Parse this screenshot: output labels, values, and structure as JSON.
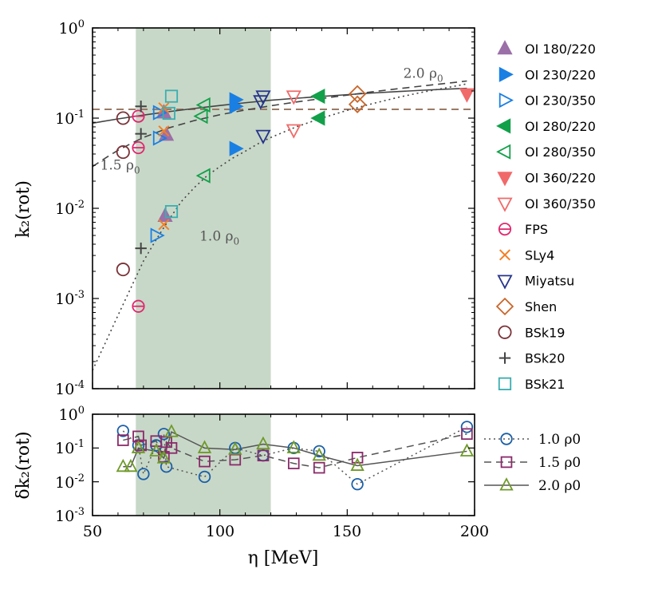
{
  "chart_data": [
    {
      "type": "scatter",
      "panel": "top",
      "xlabel": "η [MeV]",
      "ylabel": "k₂(rot)",
      "yscale": "log",
      "xlim": [
        50,
        200
      ],
      "ylim": [
        0.0001,
        1
      ],
      "yticklabels": [
        "10^0",
        "10^-1",
        "10^-2",
        "10^-3",
        "10^-4"
      ],
      "shaded_region": {
        "x_range": [
          67,
          120
        ],
        "color": "#c8d8c8"
      },
      "reference_line": {
        "y": 0.125,
        "style": "dashed",
        "color": "#9b7b66"
      },
      "fit_curves": [
        {
          "name": "2.0 ρ0",
          "style": "solid",
          "x": [
            50,
            60,
            70,
            80,
            90,
            100,
            110,
            120,
            130,
            140,
            150,
            160,
            170,
            180,
            190,
            197
          ],
          "y": [
            0.088,
            0.098,
            0.108,
            0.118,
            0.128,
            0.138,
            0.148,
            0.158,
            0.166,
            0.174,
            0.182,
            0.19,
            0.197,
            0.204,
            0.21,
            0.214
          ]
        },
        {
          "name": "1.5 ρ0",
          "style": "dashed",
          "x": [
            50,
            55,
            60,
            65,
            70,
            80,
            90,
            100,
            110,
            120,
            130,
            140,
            150,
            160,
            170,
            180,
            190,
            197
          ],
          "y": [
            0.029,
            0.036,
            0.044,
            0.052,
            0.061,
            0.078,
            0.094,
            0.109,
            0.123,
            0.137,
            0.151,
            0.165,
            0.18,
            0.196,
            0.212,
            0.228,
            0.245,
            0.258
          ]
        },
        {
          "name": "1.0 ρ0",
          "style": "dotted",
          "x": [
            50,
            55,
            60,
            65,
            70,
            75,
            80,
            85,
            90,
            95,
            100,
            105,
            110,
            115,
            120,
            130,
            140,
            150,
            160,
            170,
            180,
            190,
            197
          ],
          "y": [
            0.00016,
            0.00032,
            0.00065,
            0.0013,
            0.0026,
            0.0045,
            0.0075,
            0.012,
            0.017,
            0.023,
            0.029,
            0.036,
            0.043,
            0.052,
            0.061,
            0.08,
            0.1,
            0.122,
            0.145,
            0.17,
            0.195,
            0.22,
            0.24
          ]
        }
      ],
      "series": [
        {
          "name": "OI 180/220",
          "marker": "tri-up",
          "filled": true,
          "color": "#9b6fa8",
          "points": [
            [
              78,
              0.115
            ],
            [
              79,
              0.065
            ],
            [
              78.5,
              0.0082
            ]
          ]
        },
        {
          "name": "OI 230/220",
          "marker": "tri-right",
          "filled": true,
          "color": "#1a7fe3",
          "points": [
            [
              106,
              0.16
            ],
            [
              106,
              0.135
            ],
            [
              106,
              0.046
            ]
          ]
        },
        {
          "name": "OI 230/350",
          "marker": "tri-right",
          "filled": false,
          "color": "#1a7fe3",
          "points": [
            [
              76,
              0.115
            ],
            [
              76,
              0.06
            ],
            [
              75,
              0.005
            ]
          ]
        },
        {
          "name": "OI 280/220",
          "marker": "tri-left",
          "filled": true,
          "color": "#13a04a",
          "points": [
            [
              139,
              0.175
            ],
            [
              139,
              0.1
            ]
          ]
        },
        {
          "name": "OI 280/350",
          "marker": "tri-left",
          "filled": false,
          "color": "#13a04a",
          "points": [
            [
              94,
              0.14
            ],
            [
              93,
              0.105
            ],
            [
              94,
              0.023
            ]
          ]
        },
        {
          "name": "OI 360/220",
          "marker": "tri-down",
          "filled": true,
          "color": "#f06a6a",
          "points": [
            [
              197,
              0.185
            ]
          ]
        },
        {
          "name": "OI 360/350",
          "marker": "tri-down",
          "filled": false,
          "color": "#f06a6a",
          "points": [
            [
              129,
              0.175
            ],
            [
              129,
              0.074
            ]
          ]
        },
        {
          "name": "FPS",
          "marker": "circle-bar",
          "filled": false,
          "color": "#e0286e",
          "points": [
            [
              68,
              0.105
            ],
            [
              68,
              0.047
            ],
            [
              68,
              0.00082
            ]
          ]
        },
        {
          "name": "SLy4",
          "marker": "x",
          "filled": false,
          "color": "#f27f26",
          "points": [
            [
              78,
              0.13
            ],
            [
              78,
              0.072
            ],
            [
              78,
              0.0066
            ]
          ]
        },
        {
          "name": "Miyatsu",
          "marker": "tri-down",
          "filled": false,
          "color": "#27348b",
          "points": [
            [
              117,
              0.175
            ],
            [
              116,
              0.155
            ],
            [
              117,
              0.064
            ]
          ]
        },
        {
          "name": "Shen",
          "marker": "diamond",
          "filled": false,
          "color": "#c8662a",
          "points": [
            [
              154,
              0.185
            ],
            [
              154,
              0.142
            ]
          ]
        },
        {
          "name": "BSk19",
          "marker": "circle",
          "filled": false,
          "color": "#7a3238",
          "points": [
            [
              62,
              0.1
            ],
            [
              62,
              0.042
            ],
            [
              62,
              0.0021
            ]
          ]
        },
        {
          "name": "BSk20",
          "marker": "plus",
          "filled": false,
          "color": "#444444",
          "points": [
            [
              69,
              0.135
            ],
            [
              69,
              0.067
            ],
            [
              69,
              0.0036
            ]
          ]
        },
        {
          "name": "BSk21",
          "marker": "square",
          "filled": false,
          "color": "#3aaeb0",
          "points": [
            [
              81,
              0.175
            ],
            [
              80,
              0.113
            ],
            [
              81,
              0.0092
            ]
          ]
        }
      ],
      "annotations": [
        {
          "text": "2.0 ρ",
          "sub": "0",
          "x": 172,
          "y": 0.28
        },
        {
          "text": "1.5 ρ",
          "sub": "0",
          "x": 53,
          "y": 0.027
        },
        {
          "text": "1.0 ρ",
          "sub": "0",
          "x": 92,
          "y": 0.0044
        }
      ]
    },
    {
      "type": "line",
      "panel": "bottom",
      "xlabel": "η [MeV]",
      "ylabel": "δk₂(rot)",
      "yscale": "log",
      "xlim": [
        50,
        200
      ],
      "ylim": [
        0.001,
        1
      ],
      "xticklabels": [
        "50",
        "100",
        "150",
        "200"
      ],
      "yticklabels": [
        "10^0",
        "10^-1",
        "10^-2",
        "10^-3"
      ],
      "shaded_region": {
        "x_range": [
          67,
          120
        ],
        "color": "#c8d8c8"
      },
      "series": [
        {
          "name": "1.0 ρ0",
          "style": "dotted",
          "marker": "circle",
          "color": "#1a5fa8",
          "x": [
            62,
            68,
            70,
            75,
            78,
            79,
            94,
            106,
            117,
            129,
            139,
            154,
            197
          ],
          "y": [
            0.32,
            0.12,
            0.017,
            0.12,
            0.26,
            0.028,
            0.014,
            0.1,
            0.06,
            0.1,
            0.08,
            0.0085,
            0.42
          ]
        },
        {
          "name": "1.5 ρ0",
          "style": "dashed",
          "marker": "square",
          "color": "#8a2a6a",
          "x": [
            62,
            68,
            69,
            75,
            78,
            79,
            81,
            94,
            106,
            117,
            129,
            139,
            154,
            197
          ],
          "y": [
            0.17,
            0.22,
            0.12,
            0.16,
            0.055,
            0.15,
            0.1,
            0.04,
            0.045,
            0.06,
            0.035,
            0.026,
            0.052,
            0.26
          ]
        },
        {
          "name": "2.0 ρ0",
          "style": "solid",
          "marker": "tri-up",
          "color": "#6f9a2a",
          "x": [
            62,
            65,
            68,
            75,
            78,
            81,
            94,
            106,
            117,
            129,
            139,
            154,
            197
          ],
          "y": [
            0.028,
            0.028,
            0.1,
            0.08,
            0.05,
            0.3,
            0.1,
            0.09,
            0.13,
            0.1,
            0.06,
            0.03,
            0.08
          ]
        }
      ]
    }
  ]
}
